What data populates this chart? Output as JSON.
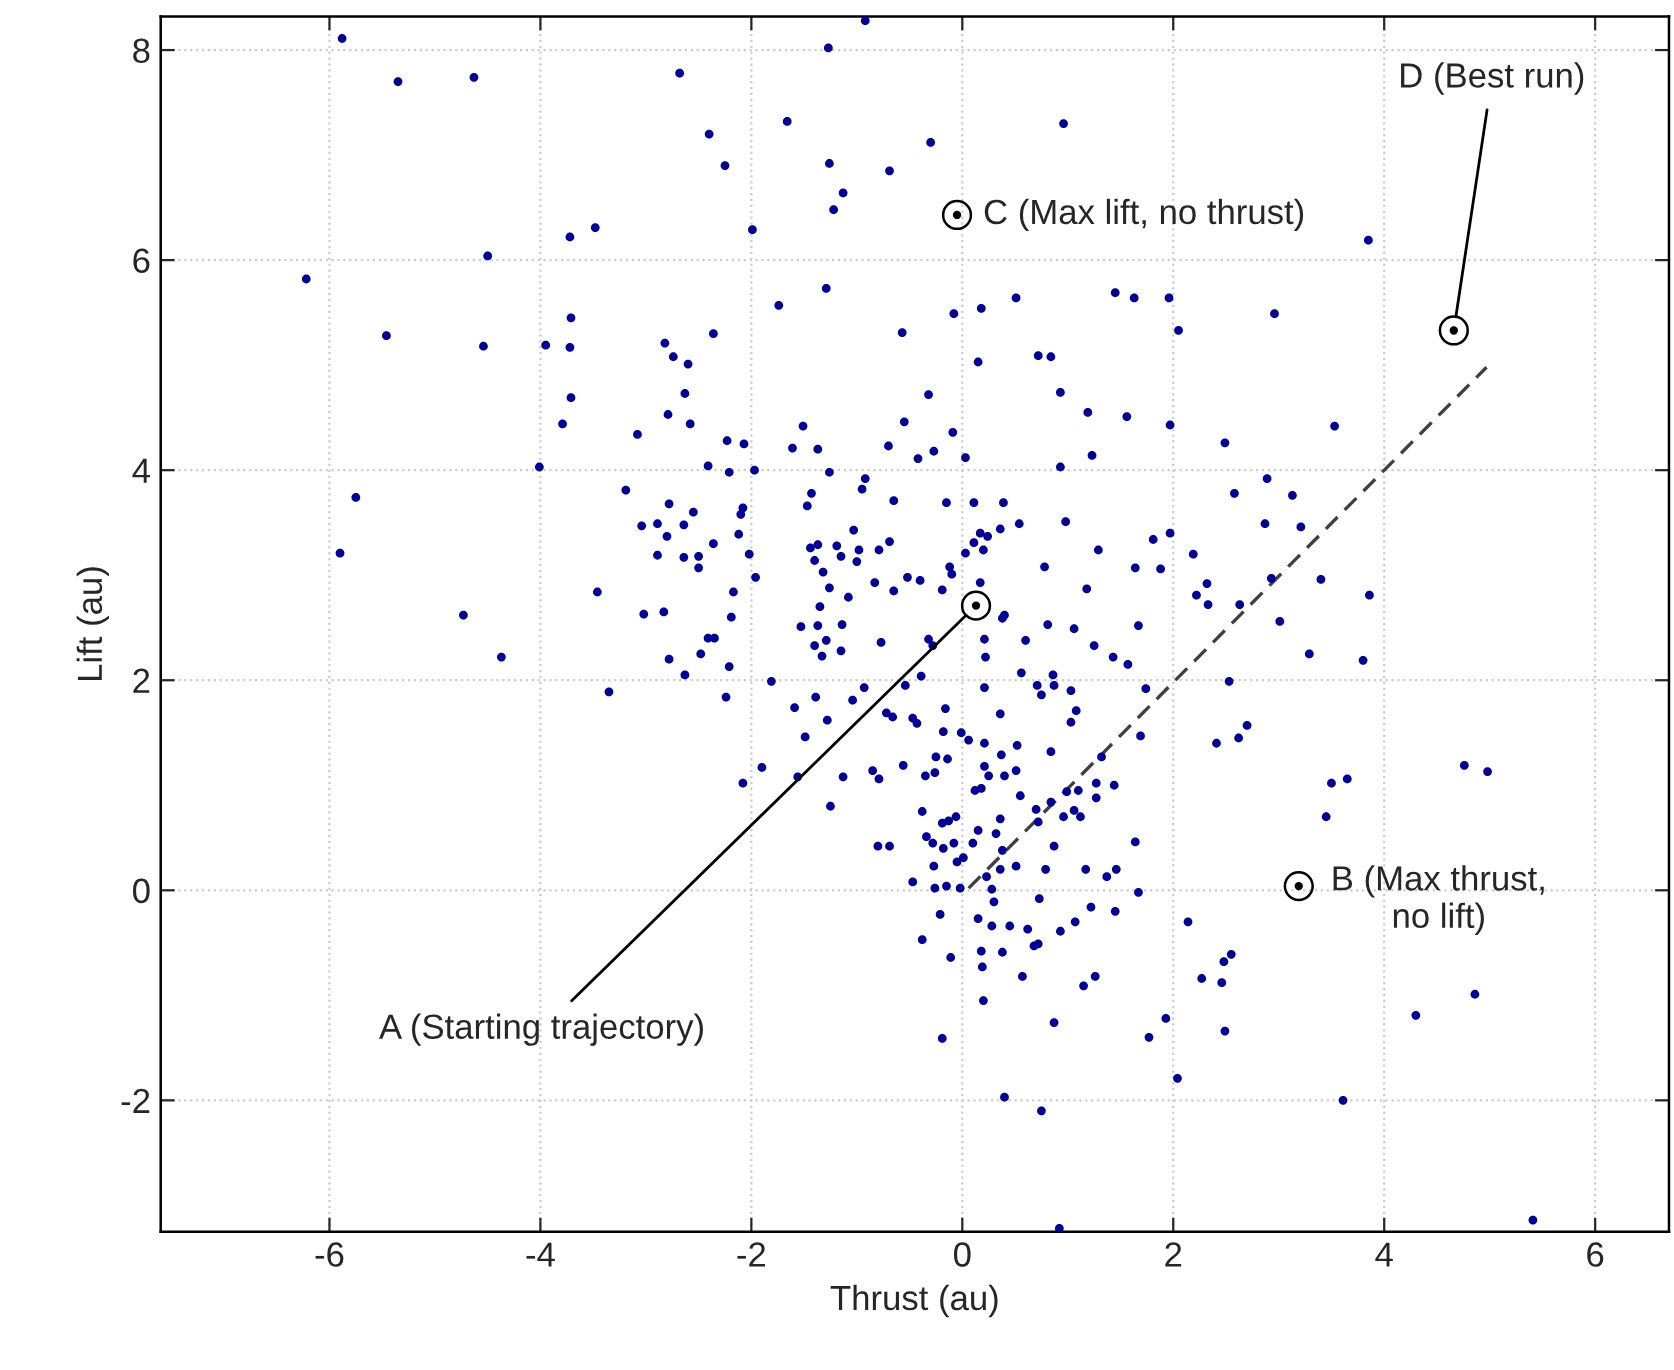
{
  "chart_data": {
    "type": "scatter",
    "xlabel": "Thrust (au)",
    "ylabel": "Lift (au)",
    "xlim": [
      -7.6,
      6.7
    ],
    "ylim": [
      -3.25,
      8.32
    ],
    "xticks": [
      -6,
      -4,
      -2,
      0,
      2,
      4,
      6
    ],
    "yticks": [
      -2,
      0,
      2,
      4,
      6,
      8
    ],
    "grid": true,
    "series": [
      {
        "color": "#000099",
        "marker": "circle",
        "x": [
          -5.88,
          -5.35,
          -4.63,
          -2.68,
          -2.4,
          -3.72,
          -3.48,
          -4.5,
          -6.22,
          -3.71,
          -5.46,
          -4.54,
          -3.95,
          -3.72,
          -2.82,
          -2.74,
          -2.6,
          -2.36,
          -3.71,
          -3.79,
          -3.08,
          -2.79,
          -2.63,
          -2.58,
          -4.01,
          -2.41,
          -5.75,
          -3.19,
          -2.78,
          -2.55,
          -3.04,
          -2.89,
          -2.8,
          -2.64,
          -2.36,
          -5.9,
          -2.89,
          -2.64,
          -2.5,
          -2.5,
          -3.46,
          -4.73,
          -3.02,
          -2.83,
          -0.92,
          -1.27,
          -1.66,
          -2.25,
          -1.26,
          -1.22,
          -1.13,
          -0.69,
          -0.3,
          0.96,
          -1.99,
          -1.29,
          -1.74,
          -0.08,
          0.18,
          0.51,
          1.45,
          1.63,
          1.96,
          2.05,
          -0.57,
          0.15,
          0.72,
          0.84,
          -0.32,
          0.93,
          1.19,
          1.56,
          1.97,
          -0.55,
          -1.51,
          -2.23,
          -2.07,
          -1.61,
          -1.37,
          -0.7,
          -0.09,
          -0.42,
          -0.27,
          0.03,
          1.23,
          2.49,
          -2.21,
          -1.97,
          -1.26,
          0.93,
          -0.92,
          -0.95,
          -1.43,
          -1.47,
          -2.08,
          -2.1,
          -0.65,
          -0.15,
          0.11,
          0.39,
          2.58,
          -2.12,
          -2.02,
          -1.44,
          -1.37,
          -1.19,
          -1.15,
          -1.4,
          -1.03,
          -0.98,
          -1.0,
          -0.79,
          -0.69,
          -1.32,
          -1.26,
          -1.08,
          -0.83,
          -0.65,
          -0.52,
          -0.4,
          -0.12,
          -0.1,
          -0.19,
          0.17,
          0.24,
          0.36,
          0.54,
          0.03,
          0.11,
          0.2,
          0.17,
          0.98,
          1.29,
          0.78,
          1.64,
          1.88,
          1.81,
          1.97,
          2.19,
          1.18,
          2.32,
          2.22,
          2.33,
          -2.17,
          -1.96,
          -1.35,
          -2.19,
          0.4,
          3.85,
          2.96,
          3.53,
          2.89,
          3.13,
          2.87,
          3.21,
          2.93,
          3.4,
          3.86,
          2.63,
          -4.37,
          -2.78,
          -2.63,
          -2.48,
          -2.41,
          -2.35,
          -3.35,
          -2.21,
          -2.24,
          -1.53,
          -1.37,
          -1.14,
          -1.4,
          -1.29,
          -1.33,
          -1.15,
          -0.77,
          -0.32,
          -0.28,
          -1.81,
          -1.59,
          -1.39,
          -1.04,
          -0.93,
          -1.28,
          -1.49,
          -0.72,
          -0.66,
          -0.54,
          -0.39,
          -0.47,
          -0.43,
          -0.16,
          -0.18,
          -0.01,
          0.06,
          0.21,
          0.22,
          0.21,
          0.38,
          0.36,
          0.6,
          0.56,
          0.71,
          0.75,
          0.86,
          0.87,
          0.81,
          1.06,
          1.25,
          1.43,
          1.57,
          1.67,
          1.03,
          1.08,
          1.03,
          1.74,
          1.69,
          0.21,
          0.52,
          0.37,
          0.21,
          0.25,
          0.4,
          0.51,
          0.12,
          0.18,
          0.55,
          0.36,
          0.84,
          0.7,
          0.72,
          -2.08,
          -1.9,
          -1.56,
          -1.25,
          -1.13,
          -0.85,
          -0.79,
          -0.56,
          -0.35,
          -0.25,
          -0.14,
          -0.26,
          -0.38,
          -0.8,
          -0.69,
          -0.34,
          -0.28,
          -0.19,
          -0.13,
          -0.06,
          -0.18,
          -0.08,
          0.1,
          0.15,
          0.01,
          -0.05,
          -0.27,
          -0.15,
          -0.26,
          -0.47,
          -0.02,
          0.23,
          0.28,
          0.3,
          0.38,
          0.32,
          0.51,
          0.36,
          -0.21,
          -0.38,
          -0.11,
          0.15,
          0.28,
          0.45,
          0.18,
          0.19,
          0.38,
          0.2,
          0.62,
          0.68,
          0.72,
          0.57,
          -0.19,
          0.4,
          0.75,
          0.92,
          0.73,
          0.79,
          0.87,
          0.84,
          0.99,
          1.1,
          0.96,
          1.06,
          1.12,
          1.27,
          1.32,
          1.27,
          1.44,
          0.87,
          0.93,
          1.07,
          1.22,
          1.45,
          1.17,
          1.37,
          1.46,
          1.64,
          1.67,
          1.15,
          1.26,
          1.77,
          1.93,
          2.04,
          2.14,
          2.27,
          2.46,
          2.48,
          2.55,
          2.49,
          2.41,
          2.53,
          3.01,
          3.29,
          3.8,
          2.62,
          2.7,
          3.5,
          3.65,
          3.45,
          4.76,
          4.98,
          4.86,
          4.3,
          3.61,
          5.41
        ],
        "values": [
          8.11,
          7.7,
          7.74,
          7.78,
          7.2,
          6.22,
          6.31,
          6.04,
          5.82,
          5.45,
          5.28,
          5.18,
          5.19,
          5.17,
          5.21,
          5.08,
          5.01,
          5.3,
          4.69,
          4.44,
          4.34,
          4.53,
          4.73,
          4.44,
          4.03,
          4.04,
          3.74,
          3.81,
          3.68,
          3.6,
          3.47,
          3.49,
          3.37,
          3.48,
          3.3,
          3.21,
          3.19,
          3.17,
          3.18,
          3.07,
          2.84,
          2.62,
          2.63,
          2.65,
          8.28,
          8.02,
          7.32,
          6.9,
          6.92,
          6.48,
          6.64,
          6.85,
          7.12,
          7.3,
          6.29,
          5.73,
          5.57,
          5.49,
          5.54,
          5.64,
          5.69,
          5.64,
          5.64,
          5.33,
          5.31,
          5.03,
          5.09,
          5.08,
          4.72,
          4.74,
          4.55,
          4.51,
          4.43,
          4.46,
          4.42,
          4.28,
          4.25,
          4.21,
          4.2,
          4.23,
          4.36,
          4.11,
          4.18,
          4.12,
          4.14,
          4.26,
          3.98,
          4.0,
          3.98,
          4.03,
          3.92,
          3.82,
          3.78,
          3.66,
          3.64,
          3.58,
          3.71,
          3.69,
          3.69,
          3.69,
          3.78,
          3.39,
          3.2,
          3.26,
          3.29,
          3.28,
          3.18,
          3.14,
          3.43,
          3.24,
          3.13,
          3.24,
          3.32,
          3.03,
          2.88,
          2.79,
          2.93,
          2.85,
          2.98,
          2.95,
          3.08,
          3.01,
          2.86,
          3.4,
          3.37,
          3.44,
          3.49,
          3.21,
          3.31,
          3.24,
          2.93,
          3.51,
          3.24,
          3.08,
          3.07,
          3.06,
          3.34,
          3.4,
          3.2,
          2.87,
          2.92,
          2.81,
          2.72,
          2.84,
          2.98,
          2.7,
          2.6,
          2.62,
          6.19,
          5.49,
          4.42,
          3.92,
          3.76,
          3.49,
          3.46,
          2.97,
          2.96,
          2.81,
          2.72,
          2.22,
          2.2,
          2.05,
          2.25,
          2.4,
          2.4,
          1.89,
          2.13,
          1.84,
          2.51,
          2.52,
          2.53,
          2.33,
          2.38,
          2.23,
          2.28,
          2.36,
          2.39,
          2.33,
          1.99,
          1.74,
          1.84,
          1.81,
          1.93,
          1.62,
          1.46,
          1.69,
          1.65,
          1.95,
          2.04,
          1.64,
          1.59,
          1.73,
          1.51,
          1.5,
          1.43,
          2.39,
          2.22,
          1.93,
          2.59,
          1.68,
          2.38,
          2.07,
          1.95,
          1.86,
          2.05,
          1.95,
          2.53,
          2.49,
          2.33,
          2.22,
          2.15,
          2.52,
          1.9,
          1.71,
          1.6,
          1.92,
          1.47,
          1.4,
          1.38,
          1.29,
          1.18,
          1.09,
          1.09,
          1.14,
          0.95,
          0.97,
          0.9,
          0.68,
          1.32,
          0.77,
          0.65,
          1.02,
          1.17,
          1.08,
          0.8,
          1.08,
          1.14,
          1.06,
          1.19,
          1.09,
          1.27,
          1.25,
          1.12,
          0.75,
          0.42,
          0.42,
          0.51,
          0.45,
          0.64,
          0.66,
          0.7,
          0.4,
          0.45,
          0.45,
          0.57,
          0.31,
          0.27,
          0.23,
          0.04,
          0.02,
          0.08,
          0.02,
          0.13,
          0.01,
          -0.11,
          0.38,
          0.54,
          0.23,
          0.2,
          -0.23,
          -0.47,
          -0.64,
          -0.27,
          -0.34,
          -0.34,
          -0.58,
          -0.73,
          -0.59,
          -1.05,
          -0.37,
          -0.53,
          -0.51,
          -0.82,
          -1.41,
          -1.97,
          -2.1,
          -3.22,
          -0.08,
          0.2,
          0.42,
          0.84,
          0.94,
          0.95,
          0.7,
          0.76,
          0.7,
          0.88,
          1.27,
          1.02,
          1.0,
          -1.26,
          -0.39,
          -0.3,
          -0.16,
          -0.2,
          0.2,
          0.13,
          0.2,
          0.46,
          -0.02,
          -0.91,
          -0.82,
          -1.4,
          -1.22,
          -1.79,
          -0.3,
          -0.84,
          -0.88,
          -0.68,
          -0.61,
          -1.34,
          1.4,
          1.99,
          2.56,
          2.25,
          2.19,
          1.45,
          1.57,
          1.02,
          1.06,
          0.7,
          1.19,
          1.13,
          -0.99,
          -1.19,
          -2.0,
          -3.14
        ]
      },
      {
        "type": "line",
        "color": "#404040",
        "line_style": "dashed",
        "x": [
          0.06,
          4.97
        ],
        "values": [
          0.02,
          4.98
        ]
      }
    ],
    "annotations": [
      {
        "text": "A (Starting trajectory)",
        "x": 0.13,
        "y": 2.71
      },
      {
        "text": "B (Max thrust,\nno lift)",
        "x": 3.19,
        "y": 0.04
      },
      {
        "text": "C (Max lift, no thrust)",
        "x": -0.05,
        "y": 6.43
      },
      {
        "text": "D (Best run)",
        "x": 4.66,
        "y": 5.33
      }
    ]
  }
}
